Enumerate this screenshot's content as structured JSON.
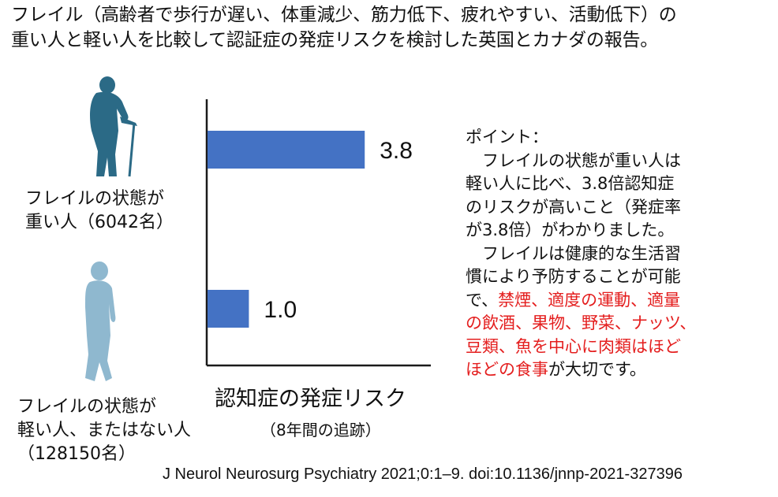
{
  "header": {
    "line1": "フレイル（高齢者で歩行が遅い、体重減少、筋力低下、疲れやすい、活動低下）の",
    "line2": "重い人と軽い人を比較して認証症の発症リスクを検討した英国とカナダの報告。"
  },
  "groups": {
    "heavy": {
      "line1": "フレイルの状態が",
      "line2": "重い人（6042名）",
      "figure_icon": "elderly-person-with-cane-icon",
      "color": "#2b6a86"
    },
    "light": {
      "line1": "フレイルの状態が",
      "line2": "軽い人、またはない人",
      "line3": "（128150名）",
      "figure_icon": "elderly-person-walking-icon",
      "color": "#8fb8cf"
    }
  },
  "chart_data": {
    "type": "bar",
    "orientation": "horizontal",
    "categories": [
      "フレイルの状態が重い人（6042名）",
      "フレイルの状態が軽い人、またはない人（128150名）"
    ],
    "values": [
      3.8,
      1.0
    ],
    "value_labels": [
      "3.8",
      "1.0"
    ],
    "xlabel": "認知症の発症リスク",
    "xlabel_sub": "（8年間の追跡）",
    "xlim": [
      0,
      5.2
    ],
    "bar_color": "#4472c4",
    "grid": false,
    "legend": "none"
  },
  "notes": {
    "lines": [
      {
        "segments": [
          {
            "text": "ポイント：",
            "red": false
          }
        ]
      },
      {
        "segments": [
          {
            "text": "　フレイルの状態が重い人は",
            "red": false
          }
        ]
      },
      {
        "segments": [
          {
            "text": "軽い人に比べ、3.8倍認知症",
            "red": false
          }
        ]
      },
      {
        "segments": [
          {
            "text": "のリスクが高いこと（発症率",
            "red": false
          }
        ]
      },
      {
        "segments": [
          {
            "text": "が3.8倍）がわかりました。",
            "red": false
          }
        ]
      },
      {
        "segments": [
          {
            "text": "　フレイルは健康的な生活習",
            "red": false
          }
        ]
      },
      {
        "segments": [
          {
            "text": "慣により予防することが可能",
            "red": false
          }
        ]
      },
      {
        "segments": [
          {
            "text": "で、",
            "red": false
          },
          {
            "text": "禁煙、適度の運動、適量",
            "red": true
          }
        ]
      },
      {
        "segments": [
          {
            "text": "の飲酒、果物、野菜、ナッツ、",
            "red": true
          }
        ]
      },
      {
        "segments": [
          {
            "text": "豆類、魚を中心に肉類はほど",
            "red": true
          }
        ]
      },
      {
        "segments": [
          {
            "text": "ほどの食事",
            "red": true
          },
          {
            "text": "が大切です。",
            "red": false
          }
        ]
      }
    ],
    "accent_color": "#e41e1e"
  },
  "citation": "J Neurol Neurosurg Psychiatry 2021;0:1–9.  doi:10.1136/jnnp-2021-327396"
}
